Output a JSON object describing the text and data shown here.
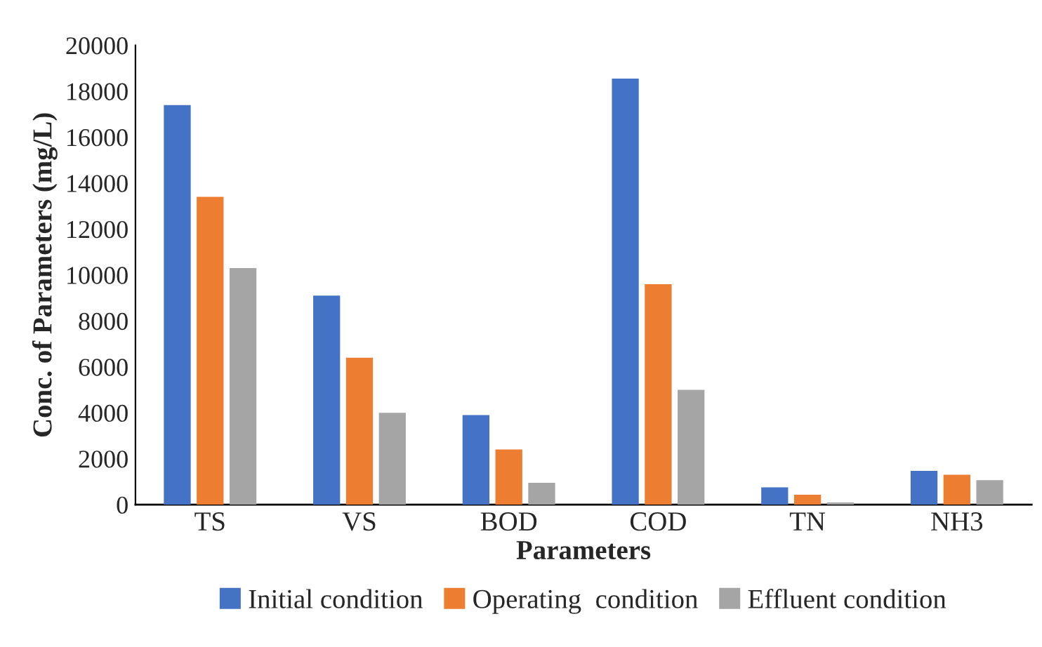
{
  "chart_data": {
    "type": "bar",
    "xlabel": "Parameters",
    "ylabel": "Conc. of Parameters (mg/L)",
    "categories": [
      "TS",
      "VS",
      "BOD",
      "COD",
      "TN",
      "NH3"
    ],
    "series": [
      {
        "name": "Initial condition",
        "color": "#4472c4",
        "values": [
          17400,
          9100,
          3900,
          18550,
          750,
          1470
        ]
      },
      {
        "name": "Operating  condition",
        "color": "#ed7d31",
        "values": [
          13400,
          6400,
          2400,
          9600,
          430,
          1300
        ]
      },
      {
        "name": "Effluent condition",
        "color": "#a5a5a5",
        "values": [
          10300,
          4000,
          950,
          5000,
          100,
          1070
        ]
      }
    ],
    "ylim": [
      0,
      20000
    ],
    "yticks": [
      0,
      2000,
      4000,
      6000,
      8000,
      10000,
      12000,
      14000,
      16000,
      18000,
      20000
    ],
    "grid": false,
    "legend": "bottom"
  }
}
